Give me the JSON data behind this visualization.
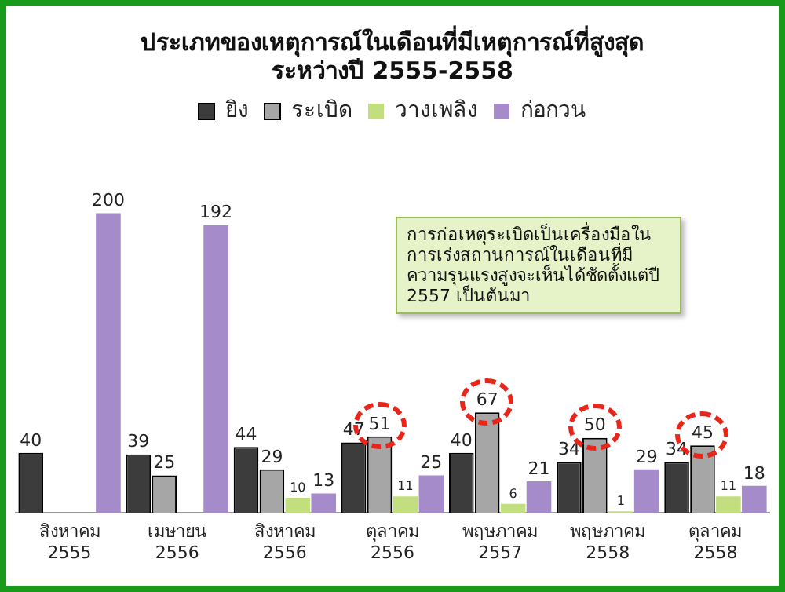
{
  "chart_data": {
    "type": "bar",
    "title": "ประเภทของเหตุการณ์ในเดือนที่มีเหตุการณ์ที่สูงสุด\nระหว่างปี 2555-2558",
    "categories": [
      "สิงหาคม 2555",
      "เมษายน 2556",
      "สิงหาคม 2556",
      "ตุลาคม 2556",
      "พฤษภาคม 2557",
      "พฤษภาคม 2558",
      "ตุลาคม 2558"
    ],
    "series": [
      {
        "name": "ยิง",
        "color": "#3c3c3c",
        "values": [
          40,
          39,
          44,
          47,
          40,
          34,
          34
        ]
      },
      {
        "name": "ระเบิด",
        "color": "#a6a6a6",
        "values": [
          null,
          25,
          29,
          51,
          67,
          50,
          45
        ]
      },
      {
        "name": "วางเพลิง",
        "color": "#c3de7e",
        "values": [
          null,
          null,
          10,
          11,
          6,
          1,
          11
        ]
      },
      {
        "name": "ก่อกวน",
        "color": "#a58bc9",
        "values": [
          200,
          192,
          13,
          25,
          21,
          29,
          18
        ]
      }
    ],
    "annotations": [
      "การก่อเหตุระเบิดเป็นเครื่องมือในการเร่งสถานการณ์ในเดือนที่มีความรุนแรงสูงจะเห็นได้ชัดตั้งแต่ปี 2557 เป็นต้นมา"
    ],
    "data_labels": true,
    "legend": "top",
    "grid": false
  }
}
